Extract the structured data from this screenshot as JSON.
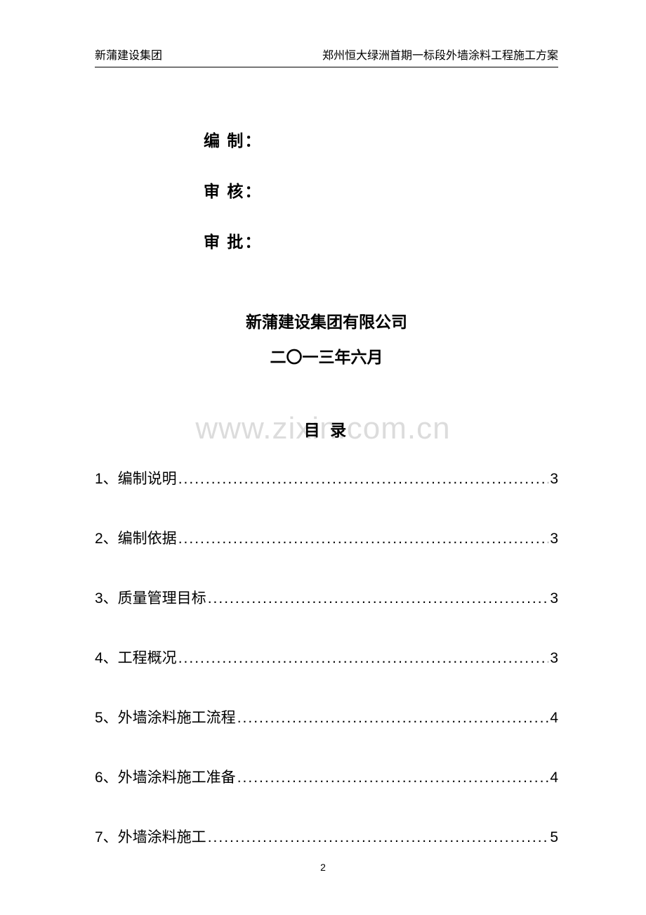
{
  "header": {
    "left": "新蒲建设集团",
    "right": "郑州恒大绿洲首期一标段外墙涂料工程施工方案"
  },
  "approval": {
    "line1": "编  制：",
    "line2": "审  核：",
    "line3": "审  批："
  },
  "company": {
    "name": "新蒲建设集团有限公司",
    "date": "二〇一三年六月"
  },
  "toc": {
    "title": "目  录",
    "items": [
      {
        "label": "1、编制说明",
        "page": "3"
      },
      {
        "label": "2、编制依据",
        "page": "3"
      },
      {
        "label": "3、质量管理目标 ",
        "page": "3"
      },
      {
        "label": "4、工程概况  ",
        "page": "3"
      },
      {
        "label": "5、外墙涂料施工流程",
        "page": "4"
      },
      {
        "label": "6、外墙涂料施工准备 ",
        "page": "4"
      },
      {
        "label": "7、外墙涂料施工 ",
        "page": "5"
      }
    ]
  },
  "watermark": "www.zixin.com.cn",
  "pageNumber": "2",
  "dots": "........................................................................................................................"
}
